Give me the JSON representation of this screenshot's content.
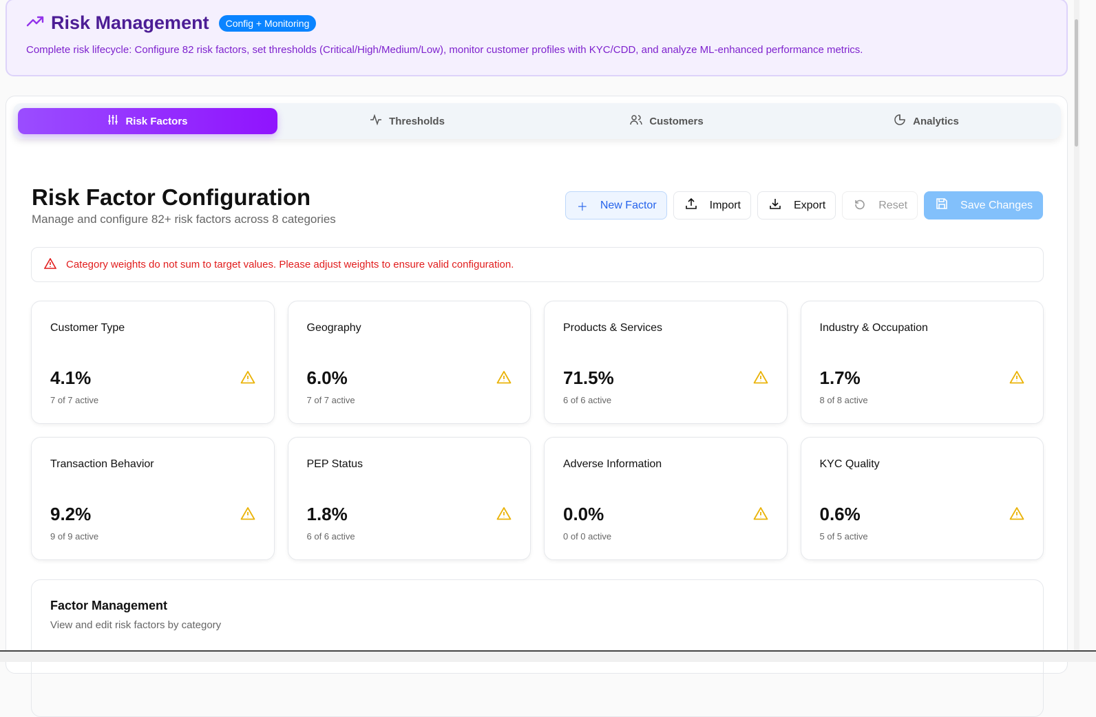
{
  "header": {
    "title": "Risk Management",
    "badge": "Config + Monitoring",
    "description": "Complete risk lifecycle: Configure 82 risk factors, set thresholds (Critical/High/Medium/Low), monitor customer profiles with KYC/CDD, and analyze ML-enhanced performance metrics."
  },
  "tabs": [
    {
      "label": "Risk Factors",
      "icon": "sliders-icon"
    },
    {
      "label": "Thresholds",
      "icon": "activity-icon"
    },
    {
      "label": "Customers",
      "icon": "users-icon"
    },
    {
      "label": "Analytics",
      "icon": "pie-chart-icon"
    }
  ],
  "section": {
    "title": "Risk Factor Configuration",
    "subtitle": "Manage and configure 82+ risk factors across 8 categories"
  },
  "buttons": {
    "new": "New Factor",
    "import": "Import",
    "export": "Export",
    "reset": "Reset",
    "save": "Save Changes"
  },
  "alert": "Category weights do not sum to target values. Please adjust weights to ensure valid configuration.",
  "categories": [
    {
      "name": "Customer Type",
      "weight": "4.1%",
      "active": "7 of 7 active"
    },
    {
      "name": "Geography",
      "weight": "6.0%",
      "active": "7 of 7 active"
    },
    {
      "name": "Products & Services",
      "weight": "71.5%",
      "active": "6 of 6 active"
    },
    {
      "name": "Industry & Occupation",
      "weight": "1.7%",
      "active": "8 of 8 active"
    },
    {
      "name": "Transaction Behavior",
      "weight": "9.2%",
      "active": "9 of 9 active"
    },
    {
      "name": "PEP Status",
      "weight": "1.8%",
      "active": "6 of 6 active"
    },
    {
      "name": "Adverse Information",
      "weight": "0.0%",
      "active": "0 of 0 active"
    },
    {
      "name": "KYC Quality",
      "weight": "0.6%",
      "active": "5 of 5 active"
    }
  ],
  "factor_management": {
    "title": "Factor Management",
    "subtitle": "View and edit risk factors by category"
  },
  "colors": {
    "accent": "#9333ea",
    "warning": "#eab308",
    "error": "#e11d1d",
    "primary": "#2563eb"
  }
}
